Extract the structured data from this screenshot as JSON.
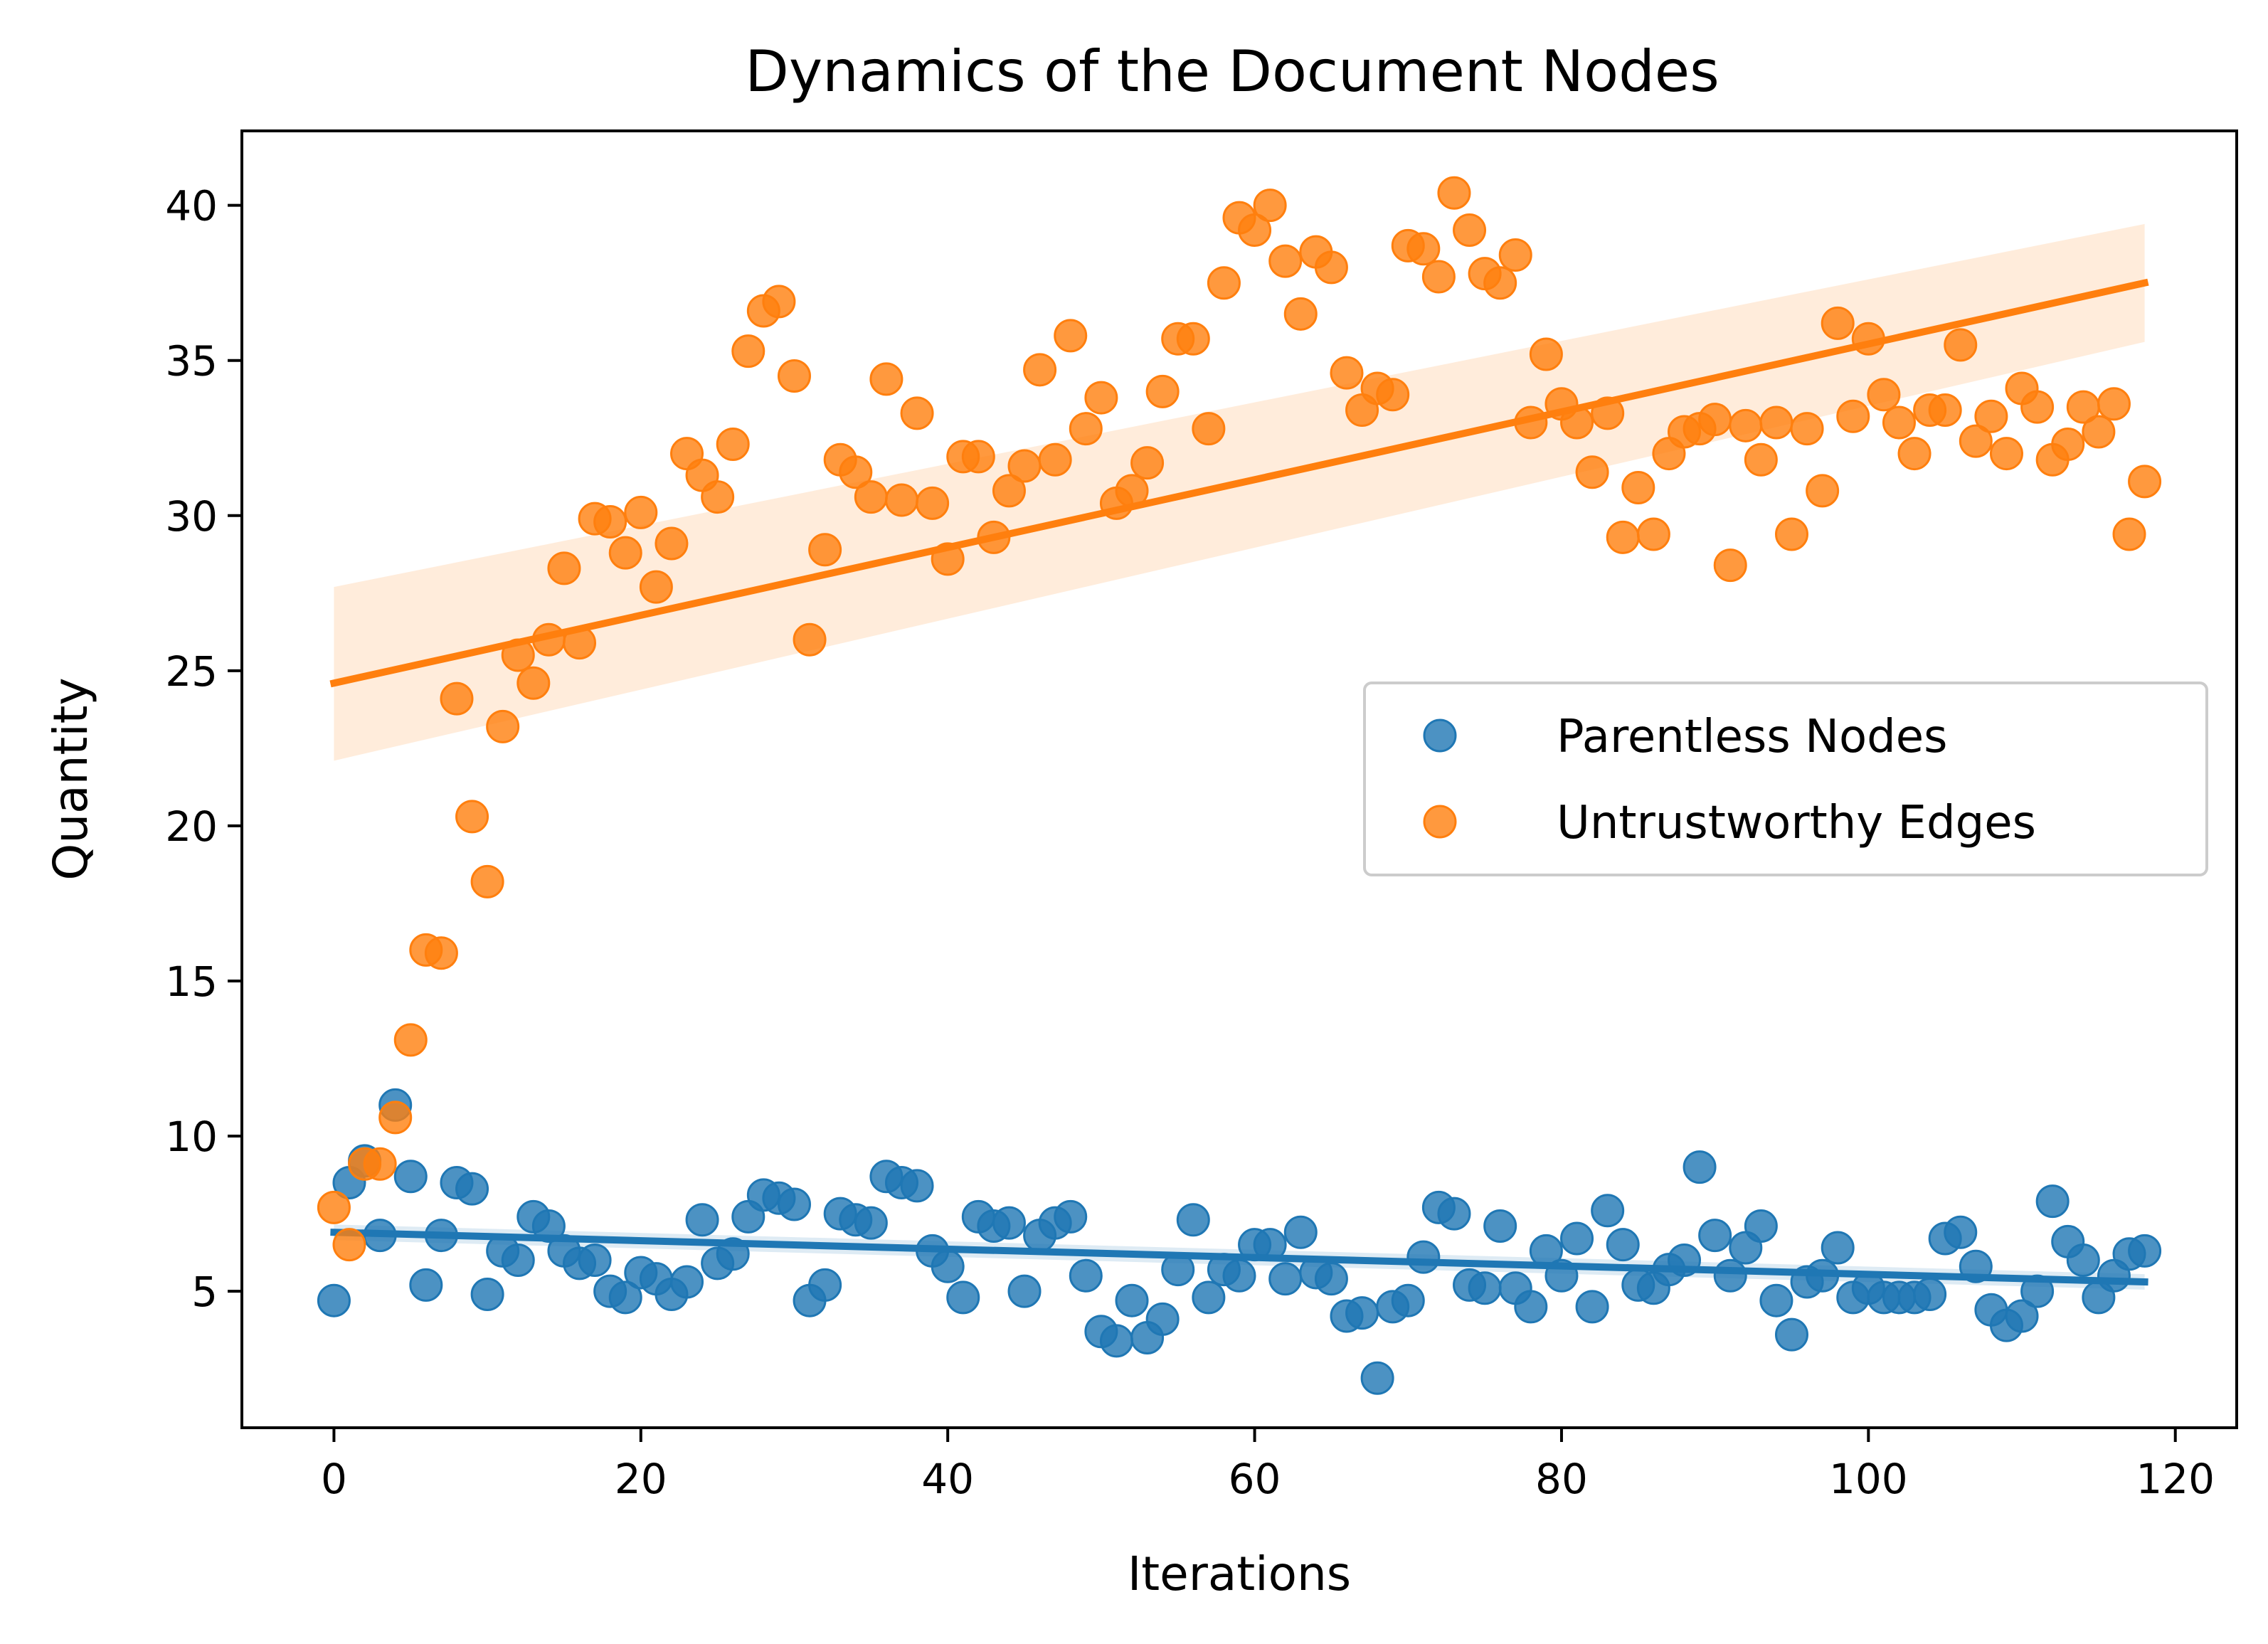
{
  "chart_data": {
    "type": "scatter",
    "title": "Dynamics of the Document Nodes",
    "xlabel": "Iterations",
    "ylabel": "Quantity",
    "xlim": [
      -6,
      124
    ],
    "ylim": [
      0.6,
      42.4
    ],
    "xticks": [
      0,
      20,
      40,
      60,
      80,
      100,
      120
    ],
    "yticks": [
      5,
      10,
      15,
      20,
      25,
      30,
      35,
      40
    ],
    "grid": false,
    "legend_position": "center-right",
    "series": [
      {
        "name": "Parentless Nodes",
        "color": "#1f77b4",
        "x": [
          0,
          1,
          2,
          3,
          4,
          5,
          6,
          7,
          8,
          9,
          10,
          11,
          12,
          13,
          14,
          15,
          16,
          17,
          18,
          19,
          20,
          21,
          22,
          23,
          24,
          25,
          26,
          27,
          28,
          29,
          30,
          31,
          32,
          33,
          34,
          35,
          36,
          37,
          38,
          39,
          40,
          41,
          42,
          43,
          44,
          45,
          46,
          47,
          48,
          49,
          50,
          51,
          52,
          53,
          54,
          55,
          56,
          57,
          58,
          59,
          60,
          61,
          62,
          63,
          64,
          65,
          66,
          67,
          68,
          69,
          70,
          71,
          72,
          73,
          74,
          75,
          76,
          77,
          78,
          79,
          80,
          81,
          82,
          83,
          84,
          85,
          86,
          87,
          88,
          89,
          90,
          91,
          92,
          93,
          94,
          95,
          96,
          97,
          98,
          99,
          100,
          101,
          102,
          103,
          104,
          105,
          106,
          107,
          108,
          109,
          110,
          111,
          112,
          113,
          114,
          115,
          116,
          117,
          118
        ],
        "y": [
          4.7,
          8.5,
          9.2,
          6.8,
          11.0,
          8.7,
          5.2,
          6.8,
          8.5,
          8.3,
          4.9,
          6.3,
          6.0,
          7.4,
          7.1,
          6.3,
          5.9,
          6.0,
          5.0,
          4.8,
          5.6,
          5.4,
          4.9,
          5.3,
          7.3,
          5.9,
          6.2,
          7.4,
          8.1,
          8.0,
          7.8,
          4.7,
          5.2,
          7.5,
          7.3,
          7.2,
          8.7,
          8.5,
          8.4,
          6.3,
          5.8,
          4.8,
          7.4,
          7.1,
          7.2,
          5.0,
          6.8,
          7.2,
          7.4,
          5.5,
          3.7,
          3.4,
          4.7,
          3.5,
          4.1,
          5.7,
          7.3,
          4.8,
          5.7,
          5.5,
          6.5,
          6.5,
          5.4,
          6.9,
          5.6,
          5.4,
          4.2,
          4.3,
          2.2,
          4.5,
          4.7,
          6.1,
          7.7,
          7.5,
          5.2,
          5.1,
          7.1,
          5.1,
          4.5,
          6.3,
          5.5,
          6.7,
          4.5,
          7.6,
          6.5,
          5.2,
          5.1,
          5.7,
          6.0,
          9.0,
          6.8,
          5.5,
          6.4,
          7.1,
          4.7,
          3.6,
          5.3,
          5.5,
          6.4,
          4.8,
          5.1,
          4.8,
          4.8,
          4.8,
          4.9,
          6.7,
          6.9,
          5.8,
          4.4,
          3.9,
          4.2,
          5.0,
          7.9,
          6.6,
          6.0,
          4.8,
          5.5,
          6.2,
          6.3
        ],
        "trend": [
          6.9,
          5.3
        ]
      },
      {
        "name": "Untrustworthy Edges",
        "color": "#ff7f0e",
        "x": [
          0,
          1,
          2,
          3,
          4,
          5,
          6,
          7,
          8,
          9,
          10,
          11,
          12,
          13,
          14,
          15,
          16,
          17,
          18,
          19,
          20,
          21,
          22,
          23,
          24,
          25,
          26,
          27,
          28,
          29,
          30,
          31,
          32,
          33,
          34,
          35,
          36,
          37,
          38,
          39,
          40,
          41,
          42,
          43,
          44,
          45,
          46,
          47,
          48,
          49,
          50,
          51,
          52,
          53,
          54,
          55,
          56,
          57,
          58,
          59,
          60,
          61,
          62,
          63,
          64,
          65,
          66,
          67,
          68,
          69,
          70,
          71,
          72,
          73,
          74,
          75,
          76,
          77,
          78,
          79,
          80,
          81,
          82,
          83,
          84,
          85,
          86,
          87,
          88,
          89,
          90,
          91,
          92,
          93,
          94,
          95,
          96,
          97,
          98,
          99,
          100,
          101,
          102,
          103,
          104,
          105,
          106,
          107,
          108,
          109,
          110,
          111,
          112,
          113,
          114,
          115,
          116,
          117,
          118
        ],
        "y": [
          7.7,
          6.5,
          9.1,
          9.1,
          10.6,
          13.1,
          16.0,
          15.9,
          24.1,
          20.3,
          18.2,
          23.2,
          25.5,
          24.6,
          26.0,
          28.3,
          25.9,
          29.9,
          29.8,
          28.8,
          30.1,
          27.7,
          29.1,
          32.0,
          31.3,
          30.6,
          32.3,
          35.3,
          36.6,
          36.9,
          34.5,
          26.0,
          28.9,
          31.8,
          31.4,
          30.6,
          34.4,
          30.5,
          33.3,
          30.4,
          28.6,
          31.9,
          31.9,
          29.3,
          30.8,
          31.6,
          34.7,
          31.8,
          35.8,
          32.8,
          33.8,
          30.4,
          30.8,
          31.7,
          34.0,
          35.7,
          35.7,
          32.8,
          37.5,
          39.6,
          39.2,
          40.0,
          38.2,
          36.5,
          38.5,
          38.0,
          34.6,
          33.4,
          34.1,
          33.9,
          38.7,
          38.6,
          37.7,
          40.4,
          39.2,
          37.8,
          37.5,
          38.4,
          33.0,
          35.2,
          33.6,
          33.0,
          31.4,
          33.3,
          29.3,
          30.9,
          29.4,
          32.0,
          32.7,
          32.8,
          33.1,
          28.4,
          32.9,
          31.8,
          33.0,
          29.4,
          32.8,
          30.8,
          36.2,
          33.2,
          35.7,
          33.9,
          33.0,
          32.0,
          33.4,
          33.4,
          35.5,
          32.4,
          33.2,
          32.0,
          34.1,
          33.5,
          31.8,
          32.3,
          33.5,
          32.7,
          33.6,
          29.4,
          31.1
        ],
        "trend": [
          24.6,
          37.5
        ],
        "ci_upper": [
          27.7,
          39.4
        ],
        "ci_lower": [
          22.1,
          35.6
        ]
      }
    ]
  }
}
